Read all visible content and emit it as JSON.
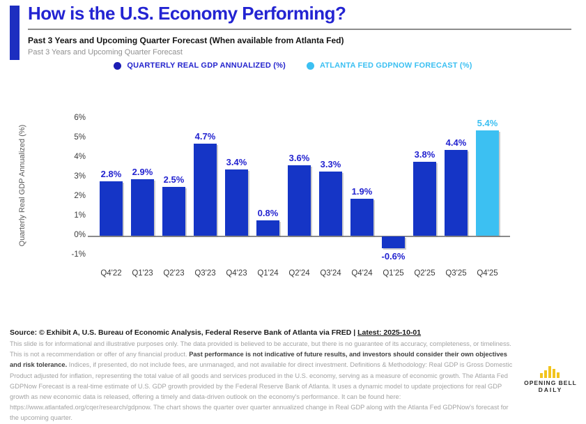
{
  "header": {
    "title": "How is the U.S. Economy Performing?",
    "subtitle_bold": "Past 3 Years and Upcoming Quarter Forecast (When available from Atlanta Fed)",
    "subtitle_gray": "Past 3 Years and Upcoming Quarter Forecast"
  },
  "legend": [
    {
      "label": "QUARTERLY REAL GDP ANNUALIZED (%)",
      "color": "#1b1cb4"
    },
    {
      "label": "ATLANTA FED GDPNOW FORECAST (%)",
      "color": "#3cc0f2"
    }
  ],
  "chart_data": {
    "type": "bar",
    "title": "",
    "xlabel": "",
    "ylabel": "Quarterly Real GDP Annualized (%)",
    "categories": [
      "Q4'22",
      "Q1'23",
      "Q2'23",
      "Q3'23",
      "Q4'23",
      "Q1'24",
      "Q2'24",
      "Q3'24",
      "Q4'24",
      "Q1'25",
      "Q2'25",
      "Q3'25",
      "Q4'25"
    ],
    "values": [
      2.8,
      2.9,
      2.5,
      4.7,
      3.4,
      0.8,
      3.6,
      3.3,
      1.9,
      -0.6,
      3.8,
      4.4,
      5.4
    ],
    "forecast_index": 12,
    "yticks": [
      6,
      5,
      4,
      3,
      2,
      1,
      0,
      -1
    ],
    "ylim": [
      -1.5,
      6.5
    ],
    "grid": false,
    "legend_position": "top",
    "bar_color": "#1535c6",
    "forecast_color": "#3cc0f2",
    "label_color": "#2323d0",
    "forecast_label_color": "#3cc0f2"
  },
  "footer": {
    "source_prefix": "Source: © Exhibit A, U.S. Bureau of Economic Analysis, Federal Reserve Bank of Atlanta via FRED | ",
    "source_link": "Latest: 2025-10-01",
    "disclaimer_pre": "This slide is for informational and illustrative purposes only. The data provided is believed to be accurate, but there is no guarantee of its accuracy, completeness, or timeliness. This is not a recommendation or offer of any financial product. ",
    "disclaimer_bold": "Past performance is not indicative of future results, and investors should consider their own objectives and risk tolerance.",
    "disclaimer_post": " Indices, if presented, do not include fees, are unmanaged, and not available for direct investment. Definitions & Methodology: Real GDP is Gross Domestic Product adjusted for inflation, representing the total value of all goods and services produced in the U.S. economy, serving as a measure of economic growth. The Atlanta Fed GDPNow Forecast is a real-time estimate of U.S. GDP growth provided by the Federal Reserve Bank of Atlanta. It uses a dynamic model to update projections for real GDP growth as new economic data is released, offering a timely and data-driven outlook on the economy's performance. It can be found here: https://www.atlantafed.org/cqer/research/gdpnow. The chart shows the quarter over quarter annualized change in Real GDP along with the Atlanta Fed GDPNow's forecast for the upcoming quarter."
  },
  "logo": {
    "line1": "OPENING BELL",
    "line2": "DAILY",
    "color": "#f2c41d"
  }
}
